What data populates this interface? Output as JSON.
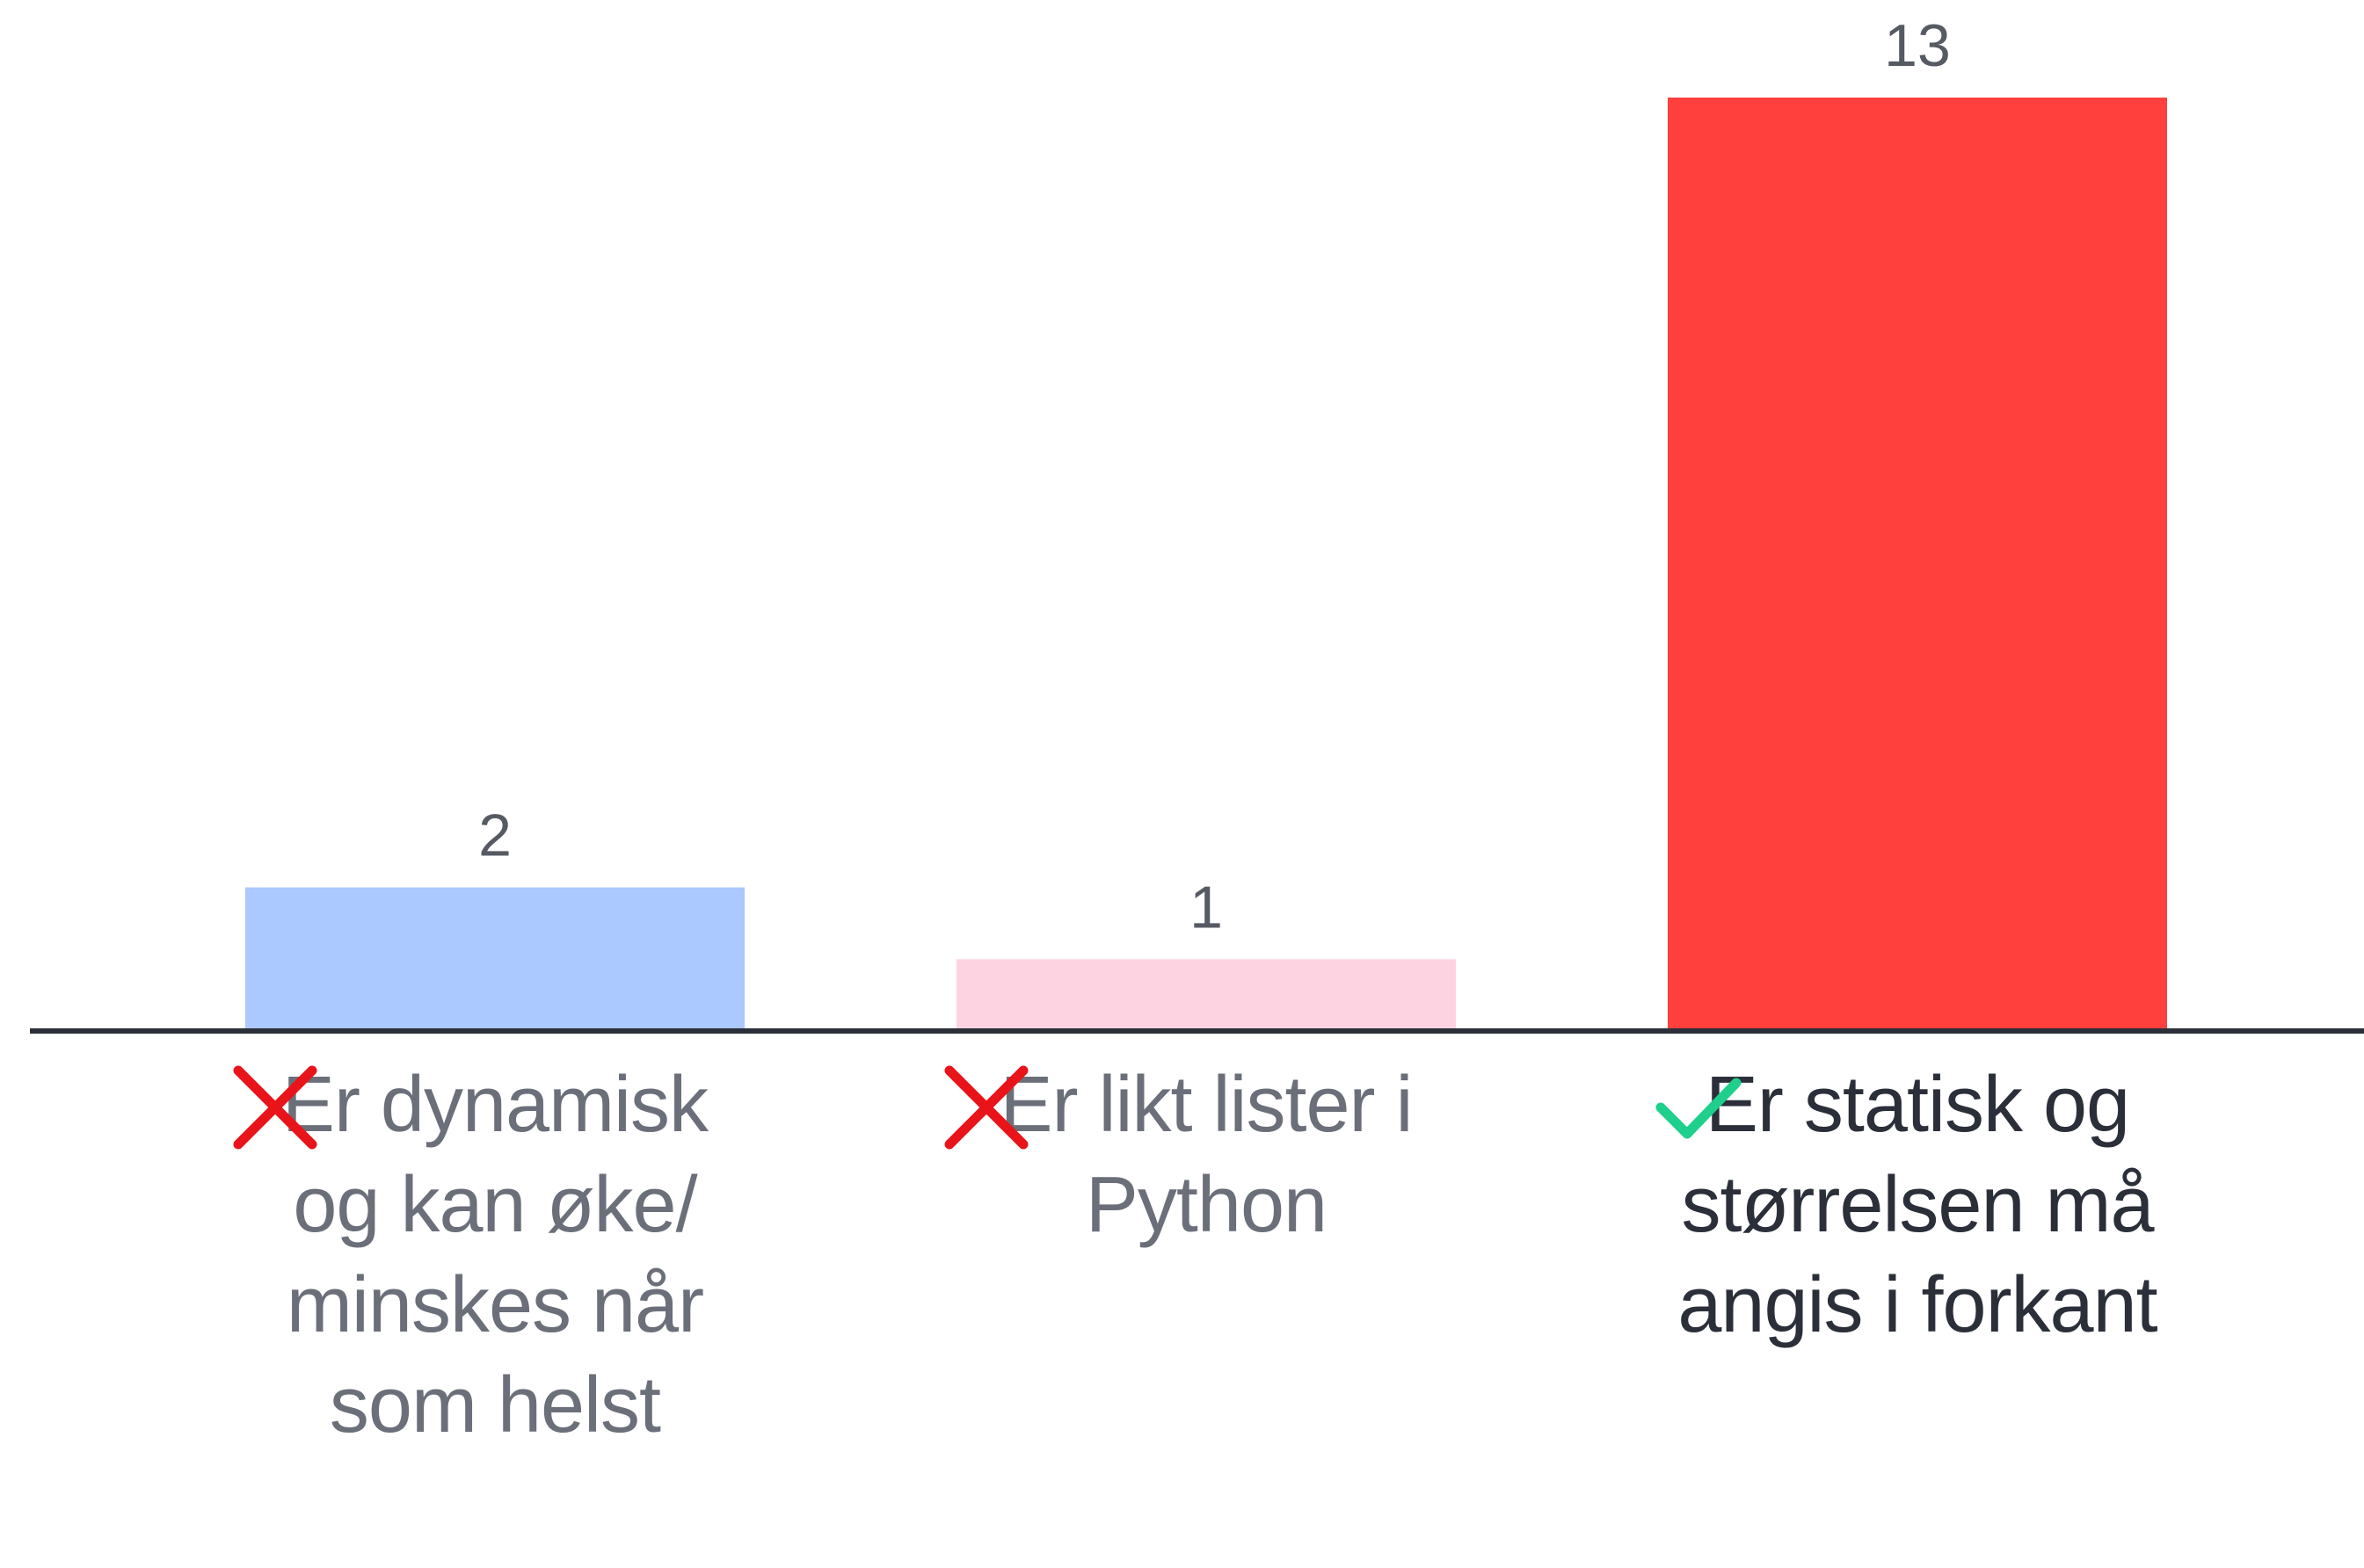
{
  "chart_data": {
    "type": "bar",
    "categories": [
      "Er dynamisk og kan øke/ minskes når som helst",
      "Er likt lister i Python",
      "Er statisk og størrelsen må angis i forkant"
    ],
    "values": [
      2,
      1,
      13
    ],
    "colors": [
      "#abc8ff",
      "#fdd3e1",
      "#ff403d"
    ],
    "correct": [
      false,
      false,
      true
    ]
  }
}
